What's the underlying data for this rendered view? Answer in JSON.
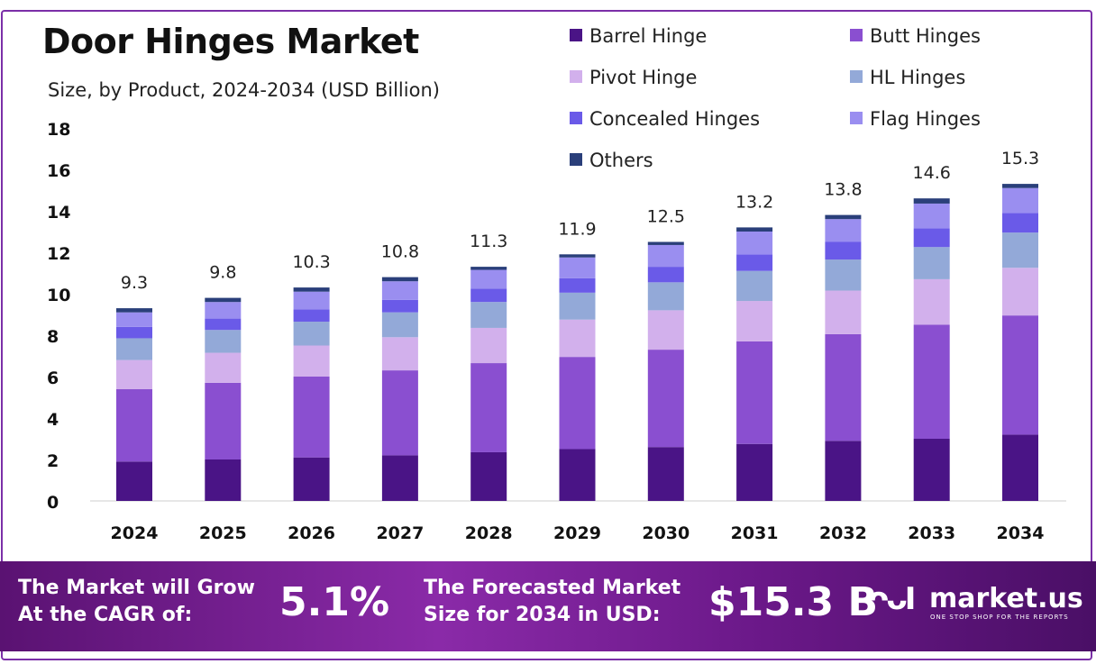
{
  "header": {
    "title": "Door Hinges Market",
    "subtitle": "Size, by Product, 2024-2034 (USD Billion)"
  },
  "colors": {
    "barrel_hinge": "#4a1486",
    "butt_hinges": "#8a4fd0",
    "pivot_hinge": "#d2b0ec",
    "hl_hinges": "#93a9d8",
    "concealed_hinges": "#6a5ae8",
    "flag_hinges": "#9a8ef0",
    "others": "#2a3f7a",
    "border": "#7b2fa8"
  },
  "chart_data": {
    "type": "bar",
    "stacked": true,
    "title": "Door Hinges Market",
    "subtitle": "Size, by Product, 2024-2034 (USD Billion)",
    "categories": [
      "2024",
      "2025",
      "2026",
      "2027",
      "2028",
      "2029",
      "2030",
      "2031",
      "2032",
      "2033",
      "2034"
    ],
    "totals": [
      "9.3",
      "9.8",
      "10.3",
      "10.8",
      "11.3",
      "11.9",
      "12.5",
      "13.2",
      "13.8",
      "14.6",
      "15.3"
    ],
    "ylim": [
      0,
      18
    ],
    "yticks": [
      "0",
      "2",
      "4",
      "6",
      "8",
      "10",
      "12",
      "14",
      "16",
      "18"
    ],
    "grid": false,
    "legend_position": "top-right",
    "series": [
      {
        "name": "Barrel Hinge",
        "values": [
          1.9,
          2.0,
          2.1,
          2.2,
          2.35,
          2.5,
          2.6,
          2.75,
          2.9,
          3.0,
          3.2
        ]
      },
      {
        "name": "Butt Hinges",
        "values": [
          3.5,
          3.7,
          3.9,
          4.1,
          4.3,
          4.45,
          4.7,
          4.95,
          5.15,
          5.5,
          5.75
        ]
      },
      {
        "name": "Pivot Hinge",
        "values": [
          1.4,
          1.45,
          1.5,
          1.6,
          1.7,
          1.8,
          1.9,
          1.95,
          2.1,
          2.2,
          2.3
        ]
      },
      {
        "name": "HL Hinges",
        "values": [
          1.05,
          1.1,
          1.15,
          1.2,
          1.25,
          1.3,
          1.35,
          1.45,
          1.5,
          1.55,
          1.7
        ]
      },
      {
        "name": "Concealed Hinges",
        "values": [
          0.55,
          0.55,
          0.6,
          0.6,
          0.65,
          0.7,
          0.75,
          0.8,
          0.85,
          0.9,
          0.95
        ]
      },
      {
        "name": "Flag Hinges",
        "values": [
          0.7,
          0.8,
          0.85,
          0.9,
          0.9,
          1.0,
          1.05,
          1.1,
          1.1,
          1.2,
          1.2
        ]
      },
      {
        "name": "Others",
        "values": [
          0.2,
          0.2,
          0.2,
          0.2,
          0.15,
          0.15,
          0.15,
          0.2,
          0.2,
          0.25,
          0.2
        ]
      }
    ]
  },
  "footer": {
    "cagr_label_line1": "The Market will Grow",
    "cagr_label_line2": "At the CAGR of:",
    "cagr_value": "5.1%",
    "forecast_label_line1": "The Forecasted Market",
    "forecast_label_line2": "Size for 2034 in USD:",
    "forecast_value": "$15.3 B",
    "logo_mark": "ᴖᴗI",
    "logo_text": "market.us",
    "logo_tagline": "ONE STOP SHOP FOR THE REPORTS"
  }
}
